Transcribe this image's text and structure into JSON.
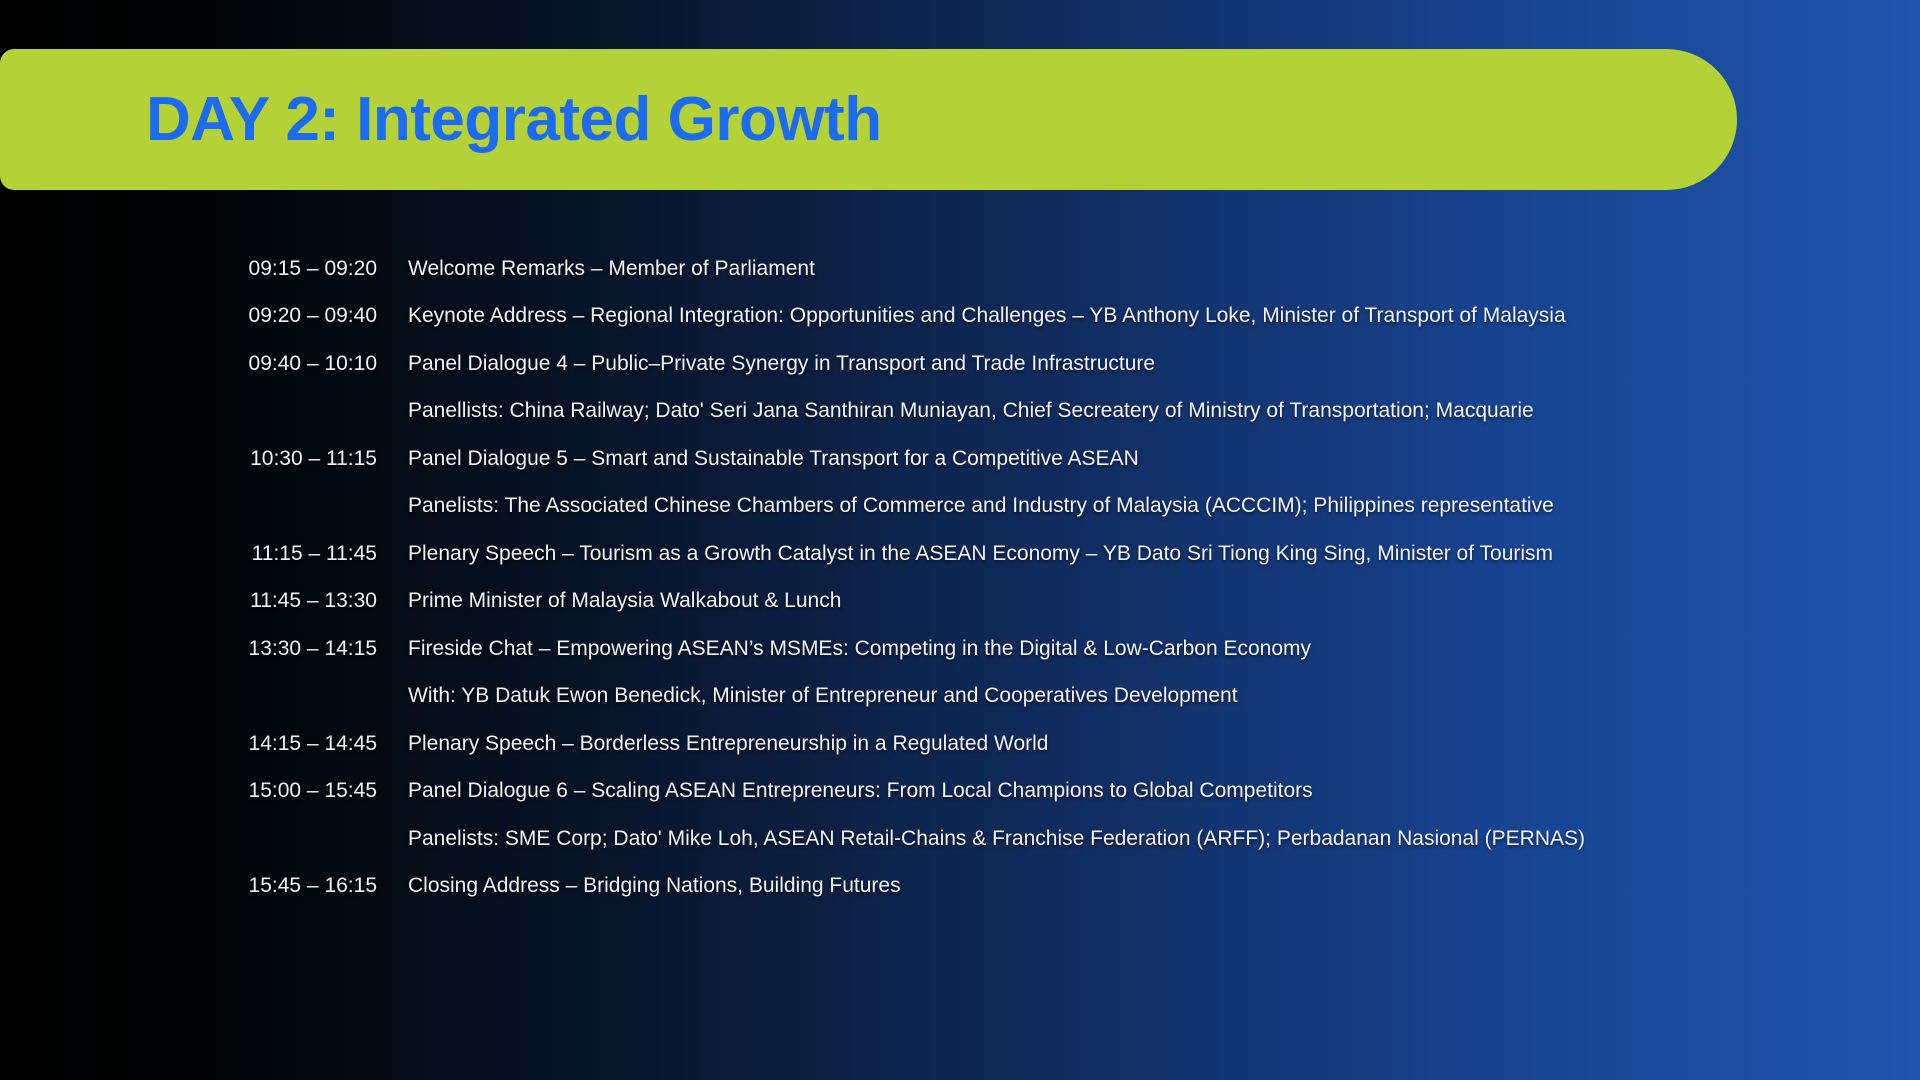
{
  "slide": {
    "title": "DAY 2: Integrated Growth",
    "banner_color": "#b5d138",
    "title_color": "#1c6bf2",
    "background_left_color": "#000000",
    "background_right_color": "#1f55aa",
    "body_text_color": "#f0f3f7"
  },
  "schedule": {
    "rows": [
      {
        "time": "09:15 – 09:20",
        "description": "Welcome Remarks – Member of Parliament"
      },
      {
        "time": "09:20 – 09:40",
        "description": "Keynote Address – Regional Integration: Opportunities and Challenges – YB Anthony Loke, Minister of Transport of Malaysia"
      },
      {
        "time": "09:40 – 10:10",
        "description": "Panel Dialogue 4 – Public–Private Synergy in Transport and Trade Infrastructure"
      },
      {
        "time": "",
        "description": "Panellists: China Railway; Dato' Seri Jana Santhiran Muniayan, Chief Secreatery of Ministry of Transportation; Macquarie"
      },
      {
        "time": "10:30 – 11:15",
        "description": "Panel Dialogue 5 – Smart and Sustainable Transport for a Competitive ASEAN"
      },
      {
        "time": "",
        "description": "Panelists: The Associated Chinese Chambers of Commerce and Industry of Malaysia (ACCCIM); Philippines representative"
      },
      {
        "time": "11:15 – 11:45",
        "description": "Plenary Speech – Tourism as a Growth Catalyst in the ASEAN Economy – YB Dato Sri Tiong King Sing, Minister of Tourism"
      },
      {
        "time": "11:45 – 13:30",
        "description": "Prime Minister of Malaysia Walkabout & Lunch"
      },
      {
        "time": "13:30 – 14:15",
        "description": "Fireside Chat – Empowering ASEAN’s MSMEs: Competing in the Digital & Low-Carbon Economy"
      },
      {
        "time": "",
        "description": "With: YB Datuk Ewon Benedick, Minister of Entrepreneur and Cooperatives Development"
      },
      {
        "time": "14:15 – 14:45",
        "description": "Plenary Speech – Borderless Entrepreneurship in a Regulated World"
      },
      {
        "time": "15:00 – 15:45",
        "description": "Panel Dialogue 6 – Scaling ASEAN Entrepreneurs: From Local Champions to Global Competitors"
      },
      {
        "time": "",
        "description": "Panelists: SME Corp; Dato' Mike Loh, ASEAN Retail-Chains & Franchise Federation (ARFF); Perbadanan Nasional (PERNAS)"
      },
      {
        "time": "15:45 – 16:15",
        "description": "Closing Address – Bridging Nations, Building Futures"
      }
    ]
  }
}
